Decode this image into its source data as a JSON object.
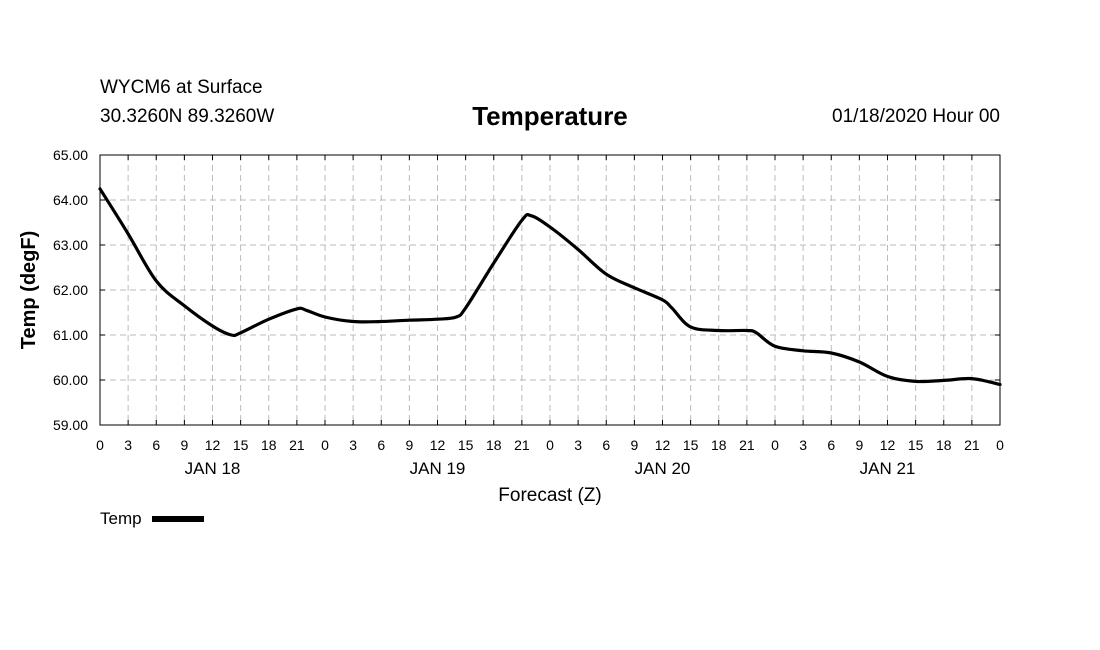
{
  "header": {
    "station": "WYCM6 at Surface",
    "coords": "30.3260N 89.3260W",
    "title": "Temperature",
    "datetime": "01/18/2020 Hour 00"
  },
  "chart_data": {
    "type": "line",
    "title": "Temperature",
    "xlabel": "Forecast (Z)",
    "ylabel": "Temp (degF)",
    "ylim": [
      59.0,
      65.0
    ],
    "y_ticks": [
      "59.00",
      "60.00",
      "61.00",
      "62.00",
      "63.00",
      "64.00",
      "65.00"
    ],
    "xlim": [
      0,
      96
    ],
    "x_tick_labels": [
      "0",
      "3",
      "6",
      "9",
      "12",
      "15",
      "18",
      "21",
      "0",
      "3",
      "6",
      "9",
      "12",
      "15",
      "18",
      "21",
      "0",
      "3",
      "6",
      "9",
      "12",
      "15",
      "18",
      "21",
      "0",
      "3",
      "6",
      "9",
      "12",
      "15",
      "18",
      "21",
      "0"
    ],
    "day_labels": [
      {
        "label": "JAN 18",
        "hour": 12
      },
      {
        "label": "JAN 19",
        "hour": 36
      },
      {
        "label": "JAN 20",
        "hour": 60
      },
      {
        "label": "JAN 21",
        "hour": 84
      }
    ],
    "grid": true,
    "legend": [
      {
        "name": "Temp",
        "color": "#000000"
      }
    ],
    "series": [
      {
        "name": "Temp",
        "x": [
          0,
          3,
          6,
          9,
          12,
          14,
          15,
          18,
          21,
          22,
          24,
          27,
          30,
          33,
          36,
          38,
          39,
          42,
          45,
          46,
          48,
          51,
          54,
          57,
          60,
          61,
          63,
          66,
          69,
          70,
          72,
          75,
          78,
          81,
          84,
          87,
          90,
          93,
          96
        ],
        "values": [
          64.25,
          63.25,
          62.2,
          61.65,
          61.2,
          61.0,
          61.05,
          61.35,
          61.58,
          61.55,
          61.4,
          61.3,
          61.3,
          61.33,
          61.35,
          61.4,
          61.6,
          62.6,
          63.55,
          63.65,
          63.4,
          62.9,
          62.35,
          62.05,
          61.78,
          61.6,
          61.18,
          61.1,
          61.1,
          61.05,
          60.75,
          60.65,
          60.6,
          60.4,
          60.08,
          59.97,
          59.99,
          60.03,
          59.9
        ]
      }
    ]
  }
}
